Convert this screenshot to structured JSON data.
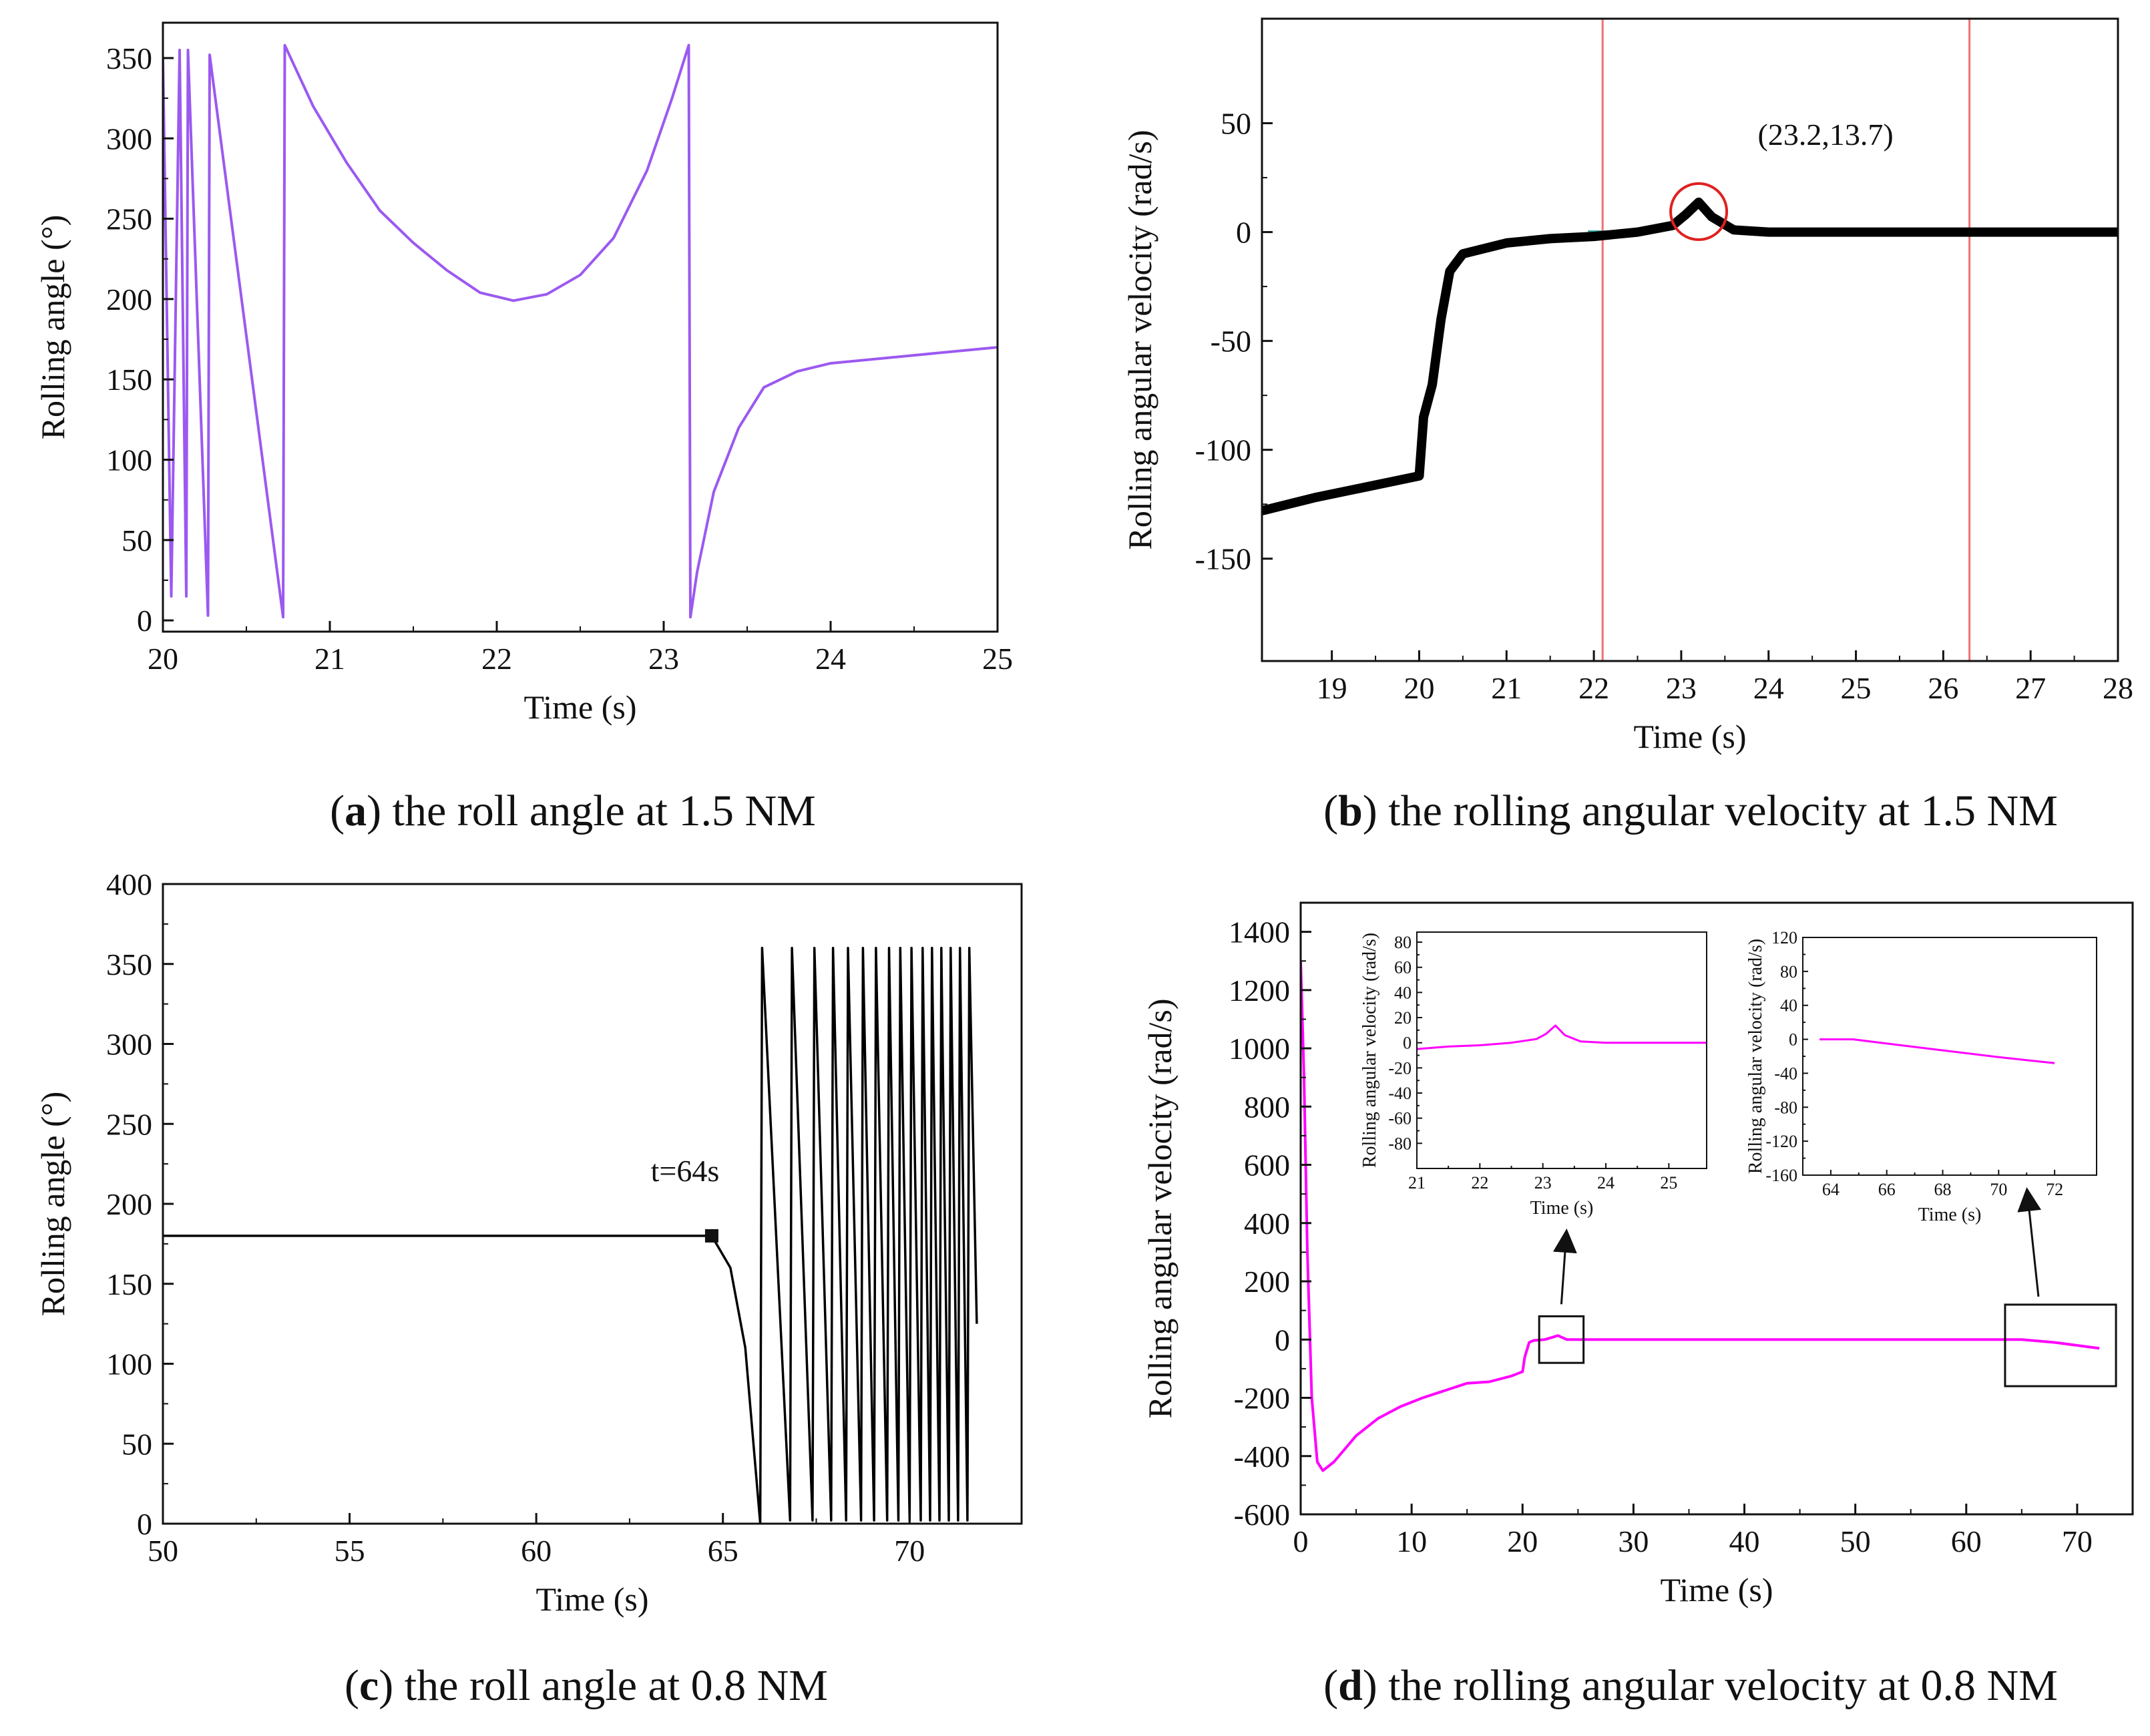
{
  "chart_data": [
    {
      "id": "a",
      "type": "line",
      "xlabel": "Time (s)",
      "ylabel": "Rolling angle (°)",
      "xlim": [
        20,
        25
      ],
      "ylim": [
        -7,
        372
      ],
      "xticks": [
        20,
        21,
        22,
        23,
        24,
        25
      ],
      "yticks": [
        0,
        50,
        100,
        150,
        200,
        250,
        300,
        350
      ],
      "color": "#9b59f0",
      "caption": {
        "letter": "a",
        "text": " the roll angle at 1.5 NM"
      },
      "series": [
        {
          "name": "roll angle",
          "points": [
            [
              20.0,
              350
            ],
            [
              20.05,
              15
            ],
            [
              20.1,
              355
            ],
            [
              20.14,
              15
            ],
            [
              20.15,
              355
            ],
            [
              20.27,
              3
            ],
            [
              20.28,
              352
            ],
            [
              20.72,
              2
            ],
            [
              20.73,
              358
            ],
            [
              20.9,
              320
            ],
            [
              21.1,
              285
            ],
            [
              21.3,
              255
            ],
            [
              21.5,
              235
            ],
            [
              21.7,
              218
            ],
            [
              21.9,
              204
            ],
            [
              22.1,
              199
            ],
            [
              22.3,
              203
            ],
            [
              22.5,
              215
            ],
            [
              22.7,
              238
            ],
            [
              22.9,
              280
            ],
            [
              23.05,
              325
            ],
            [
              23.15,
              358
            ],
            [
              23.16,
              2
            ],
            [
              23.2,
              30
            ],
            [
              23.3,
              80
            ],
            [
              23.45,
              120
            ],
            [
              23.6,
              145
            ],
            [
              23.8,
              155
            ],
            [
              24.0,
              160
            ],
            [
              24.5,
              165
            ],
            [
              25.0,
              170
            ]
          ]
        }
      ]
    },
    {
      "id": "b",
      "type": "line",
      "xlabel": "Time (s)",
      "ylabel": "Rolling angular velocity (rad/s)",
      "xlim": [
        18.2,
        28
      ],
      "ylim": [
        -197,
        98
      ],
      "xticks": [
        19,
        20,
        21,
        22,
        23,
        24,
        25,
        26,
        27,
        28
      ],
      "yticks": [
        -150,
        -100,
        -50,
        0,
        50
      ],
      "color": "#000000",
      "vlines": [
        22.1,
        26.3
      ],
      "annotation": {
        "x": 23.2,
        "y": 13.7,
        "text": "(23.2,13.7)"
      },
      "caption": {
        "letter": "b",
        "text": " the rolling angular velocity at 1.5 NM"
      },
      "series": [
        {
          "name": "angular velocity",
          "points": [
            [
              18.2,
              -128
            ],
            [
              18.8,
              -122
            ],
            [
              19.4,
              -117
            ],
            [
              20.0,
              -112
            ],
            [
              20.05,
              -85
            ],
            [
              20.15,
              -70
            ],
            [
              20.25,
              -40
            ],
            [
              20.35,
              -18
            ],
            [
              20.5,
              -10
            ],
            [
              20.8,
              -7
            ],
            [
              21.0,
              -5
            ],
            [
              21.5,
              -3
            ],
            [
              22.0,
              -2
            ],
            [
              22.5,
              0
            ],
            [
              22.9,
              3
            ],
            [
              23.05,
              8
            ],
            [
              23.2,
              13.7
            ],
            [
              23.35,
              7
            ],
            [
              23.6,
              1
            ],
            [
              24.0,
              0
            ],
            [
              28.0,
              0
            ]
          ]
        }
      ]
    },
    {
      "id": "c",
      "type": "line",
      "xlabel": "Time (s)",
      "ylabel": "Rolling angle (°)",
      "xlim": [
        50,
        73
      ],
      "ylim": [
        0,
        400
      ],
      "xticks": [
        50,
        55,
        60,
        65,
        70
      ],
      "yticks": [
        0,
        50,
        100,
        150,
        200,
        250,
        300,
        350,
        400
      ],
      "color": "#000000",
      "marker": {
        "x": 64.7,
        "y": 180,
        "text": "t=64s"
      },
      "caption": {
        "letter": "c",
        "text": " the roll angle at 0.8 NM"
      },
      "series": [
        {
          "name": "roll angle",
          "points": [
            [
              50,
              180
            ],
            [
              64.7,
              180
            ],
            [
              65.2,
              160
            ],
            [
              65.6,
              110
            ],
            [
              66.0,
              0
            ],
            [
              66.05,
              360
            ],
            [
              66.8,
              2
            ],
            [
              66.85,
              360
            ],
            [
              67.4,
              2
            ],
            [
              67.45,
              360
            ],
            [
              67.9,
              2
            ],
            [
              67.95,
              360
            ],
            [
              68.3,
              2
            ],
            [
              68.35,
              360
            ],
            [
              68.7,
              2
            ],
            [
              68.75,
              360
            ],
            [
              69.05,
              2
            ],
            [
              69.1,
              360
            ],
            [
              69.4,
              2
            ],
            [
              69.45,
              360
            ],
            [
              69.7,
              2
            ],
            [
              69.75,
              360
            ],
            [
              70.0,
              2
            ],
            [
              70.05,
              360
            ],
            [
              70.3,
              2
            ],
            [
              70.35,
              360
            ],
            [
              70.55,
              2
            ],
            [
              70.6,
              360
            ],
            [
              70.8,
              2
            ],
            [
              70.85,
              360
            ],
            [
              71.05,
              2
            ],
            [
              71.1,
              360
            ],
            [
              71.3,
              2
            ],
            [
              71.35,
              360
            ],
            [
              71.55,
              2
            ],
            [
              71.6,
              360
            ],
            [
              71.8,
              125
            ]
          ]
        }
      ]
    },
    {
      "id": "d",
      "type": "line",
      "xlabel": "Time (s)",
      "ylabel": "Rolling angular velocity (rad/s)",
      "xlim": [
        0,
        75
      ],
      "ylim": [
        -600,
        1500
      ],
      "xticks": [
        0,
        10,
        20,
        30,
        40,
        50,
        60,
        70
      ],
      "yticks": [
        -600,
        -400,
        -200,
        0,
        200,
        400,
        600,
        800,
        1000,
        1200,
        1400
      ],
      "color": "#ff00ff",
      "caption": {
        "letter": "d",
        "text": " the rolling angular velocity at 0.8 NM"
      },
      "zoom_boxes": [
        {
          "x": [
            21.5,
            25.5
          ],
          "y": [
            -80,
            80
          ]
        },
        {
          "x": [
            63.5,
            73.5
          ],
          "y": [
            -160,
            120
          ]
        }
      ],
      "series": [
        {
          "name": "angular velocity",
          "points": [
            [
              0,
              1300
            ],
            [
              0.3,
              900
            ],
            [
              0.6,
              300
            ],
            [
              1.0,
              -200
            ],
            [
              1.5,
              -420
            ],
            [
              2,
              -450
            ],
            [
              3,
              -420
            ],
            [
              5,
              -330
            ],
            [
              7,
              -270
            ],
            [
              9,
              -230
            ],
            [
              11,
              -200
            ],
            [
              13,
              -175
            ],
            [
              15,
              -150
            ],
            [
              17,
              -145
            ],
            [
              19,
              -125
            ],
            [
              20,
              -110
            ],
            [
              20.2,
              -60
            ],
            [
              20.6,
              -10
            ],
            [
              21,
              -3
            ],
            [
              22,
              0
            ],
            [
              23.2,
              13.7
            ],
            [
              24,
              0
            ],
            [
              30,
              0
            ],
            [
              40,
              0
            ],
            [
              50,
              0
            ],
            [
              60,
              0
            ],
            [
              65,
              0
            ],
            [
              68,
              -10
            ],
            [
              72,
              -30
            ]
          ]
        }
      ],
      "insets": [
        {
          "id": "d-inset1",
          "type": "line",
          "xlabel": "Time (s)",
          "ylabel": "Rolling angular velocity (rad/s)",
          "xlim": [
            21,
            25.6
          ],
          "ylim": [
            -100,
            88
          ],
          "xticks": [
            21,
            22,
            23,
            24,
            25
          ],
          "yticks": [
            -80,
            -60,
            -40,
            -20,
            0,
            20,
            40,
            60,
            80
          ],
          "points": [
            [
              21,
              -5
            ],
            [
              21.5,
              -3
            ],
            [
              22,
              -2
            ],
            [
              22.5,
              0
            ],
            [
              22.9,
              3
            ],
            [
              23.05,
              7
            ],
            [
              23.2,
              13.7
            ],
            [
              23.35,
              6
            ],
            [
              23.6,
              1
            ],
            [
              24,
              0
            ],
            [
              25.6,
              0
            ]
          ]
        },
        {
          "id": "d-inset2",
          "type": "line",
          "xlabel": "Time (s)",
          "ylabel": "Rolling angular velocity (rad/s)",
          "xlim": [
            63,
            73.5
          ],
          "ylim": [
            -160,
            120
          ],
          "xticks": [
            64,
            66,
            68,
            70,
            72
          ],
          "yticks": [
            -160,
            -120,
            -80,
            -40,
            0,
            40,
            80,
            120
          ],
          "points": [
            [
              63.6,
              0
            ],
            [
              64.8,
              0
            ],
            [
              66,
              -5
            ],
            [
              68,
              -13
            ],
            [
              70,
              -21
            ],
            [
              72,
              -28
            ]
          ]
        }
      ]
    }
  ]
}
